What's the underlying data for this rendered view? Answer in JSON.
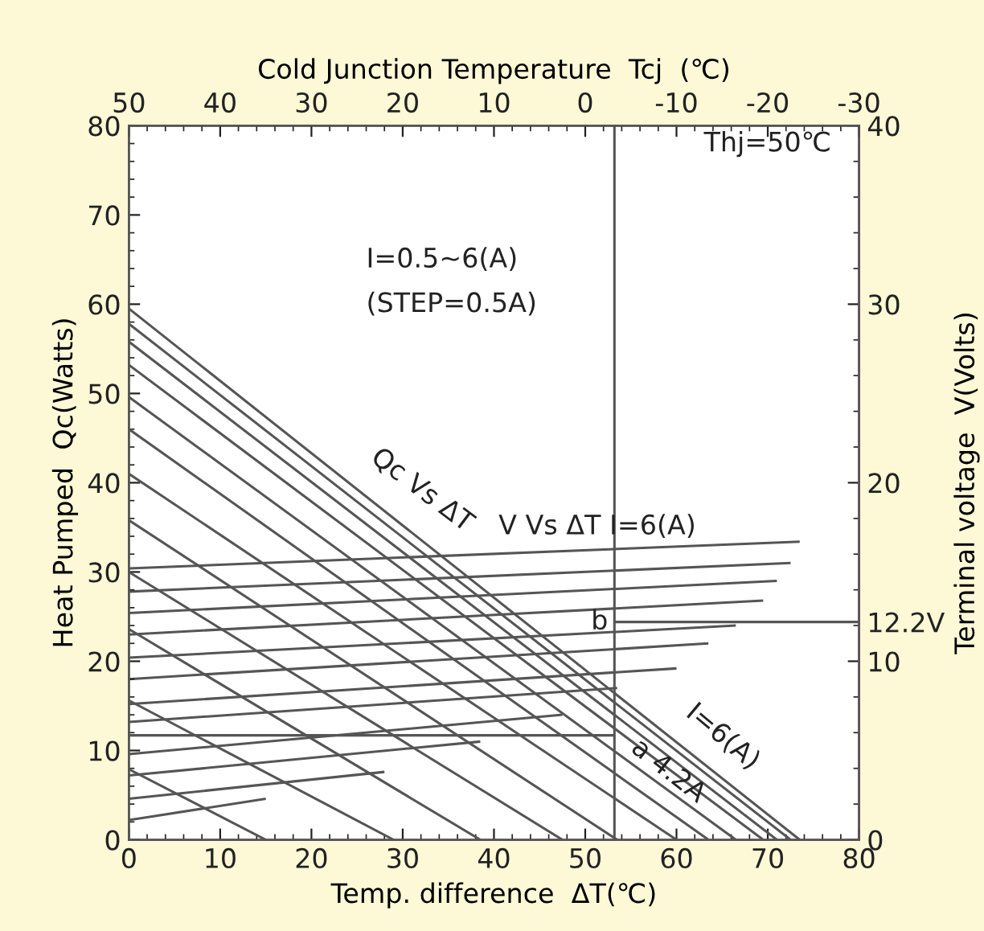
{
  "chart_data": {
    "type": "line",
    "xlabel": "Temp. difference  ΔT(℃)",
    "ylabel": "Heat Pumped  Qc(Watts)",
    "y2label": "Terminal voltage  V(Volts)",
    "x2label": "Cold Junction Temperature  Tcj  (℃)",
    "xlim": [
      0,
      80
    ],
    "xticks": [
      0,
      10,
      20,
      30,
      40,
      50,
      60,
      70,
      80
    ],
    "ylim": [
      0,
      80
    ],
    "yticks": [
      0,
      10,
      20,
      30,
      40,
      50,
      60,
      70,
      80
    ],
    "y2lim": [
      0,
      40
    ],
    "y2ticks": [
      0,
      10,
      {
        "value": 12.2,
        "label": "12.2V"
      },
      20,
      30,
      40
    ],
    "x2lim": [
      50,
      -30
    ],
    "x2ticks": [
      50,
      40,
      30,
      20,
      10,
      0,
      -10,
      -20,
      -30
    ],
    "grid": false,
    "marker": "none",
    "line_style": "solid",
    "series": [
      {
        "x": [
          0,
          15
        ],
        "values": [
          7.9,
          0
        ],
        "color": "#555555"
      },
      {
        "x": [
          0,
          29
        ],
        "values": [
          15.6,
          0
        ],
        "color": "#555555"
      },
      {
        "x": [
          0,
          38.5
        ],
        "values": [
          23.6,
          0
        ],
        "color": "#555555"
      },
      {
        "x": [
          0,
          47.5
        ],
        "values": [
          30,
          0
        ],
        "color": "#555555"
      },
      {
        "x": [
          0,
          53.5
        ],
        "values": [
          35.8,
          0
        ],
        "color": "#555555"
      },
      {
        "x": [
          0,
          60
        ],
        "values": [
          41,
          0
        ],
        "color": "#555555"
      },
      {
        "x": [
          0,
          63.5
        ],
        "values": [
          46,
          0
        ],
        "color": "#555555"
      },
      {
        "x": [
          0,
          66.5
        ],
        "values": [
          49.6,
          0
        ],
        "color": "#555555"
      },
      {
        "x": [
          0,
          69.5
        ],
        "values": [
          53.2,
          0
        ],
        "color": "#555555"
      },
      {
        "x": [
          0,
          71
        ],
        "values": [
          55.8,
          0
        ],
        "color": "#555555"
      },
      {
        "x": [
          0,
          72.5
        ],
        "values": [
          57.8,
          0
        ],
        "color": "#555555"
      },
      {
        "x": [
          0,
          73.5
        ],
        "values": [
          59.5,
          0
        ],
        "color": "#555555"
      },
      {
        "axis": "y2",
        "x": [
          0,
          15
        ],
        "values": [
          1.1,
          2.3
        ],
        "color": "#555555"
      },
      {
        "axis": "y2",
        "x": [
          0,
          28
        ],
        "values": [
          2.3,
          3.8
        ],
        "color": "#555555"
      },
      {
        "axis": "y2",
        "x": [
          0,
          38.5
        ],
        "values": [
          3.6,
          5.5
        ],
        "color": "#555555"
      },
      {
        "axis": "y2",
        "x": [
          0,
          47.5
        ],
        "values": [
          4.8,
          7.0
        ],
        "color": "#555555"
      },
      {
        "axis": "y2",
        "x": [
          0,
          53.5
        ],
        "values": [
          6.6,
          8.5
        ],
        "color": "#555555"
      },
      {
        "axis": "y2",
        "x": [
          0,
          60
        ],
        "values": [
          7.6,
          9.6
        ],
        "color": "#555555"
      },
      {
        "axis": "y2",
        "x": [
          0,
          63.5
        ],
        "values": [
          9.0,
          11.0
        ],
        "color": "#555555"
      },
      {
        "axis": "y2",
        "x": [
          0,
          66.5
        ],
        "values": [
          10.2,
          12.0
        ],
        "color": "#555555"
      },
      {
        "axis": "y2",
        "x": [
          0,
          69.5
        ],
        "values": [
          11.5,
          13.4
        ],
        "color": "#555555"
      },
      {
        "axis": "y2",
        "x": [
          0,
          71
        ],
        "values": [
          12.7,
          14.5
        ],
        "color": "#555555"
      },
      {
        "axis": "y2",
        "x": [
          0,
          72.5
        ],
        "values": [
          13.9,
          15.5
        ],
        "color": "#555555"
      },
      {
        "axis": "y2",
        "x": [
          0,
          73.5
        ],
        "values": [
          15.2,
          16.7
        ],
        "color": "#555555"
      },
      {
        "x": [
          0,
          53.2
        ],
        "values": [
          11.7,
          11.7
        ],
        "color": "#555555"
      },
      {
        "axis": "y2",
        "x": [
          53.2,
          80
        ],
        "values": [
          12.2,
          12.2
        ],
        "color": "#555555"
      }
    ],
    "ref_lines": [
      {
        "axis": "x",
        "value": 53.2,
        "color": "#555555"
      }
    ],
    "annotations": [
      "Thj=50℃",
      "I=0.5∼6(A)",
      "(STEP=0.5A)",
      "Qc Vs ΔT",
      "V Vs ΔT I=6(A)",
      {
        "text": "b",
        "x": 53.2,
        "y": 24.4
      },
      "I=6(A)",
      "a 4.2A"
    ]
  }
}
